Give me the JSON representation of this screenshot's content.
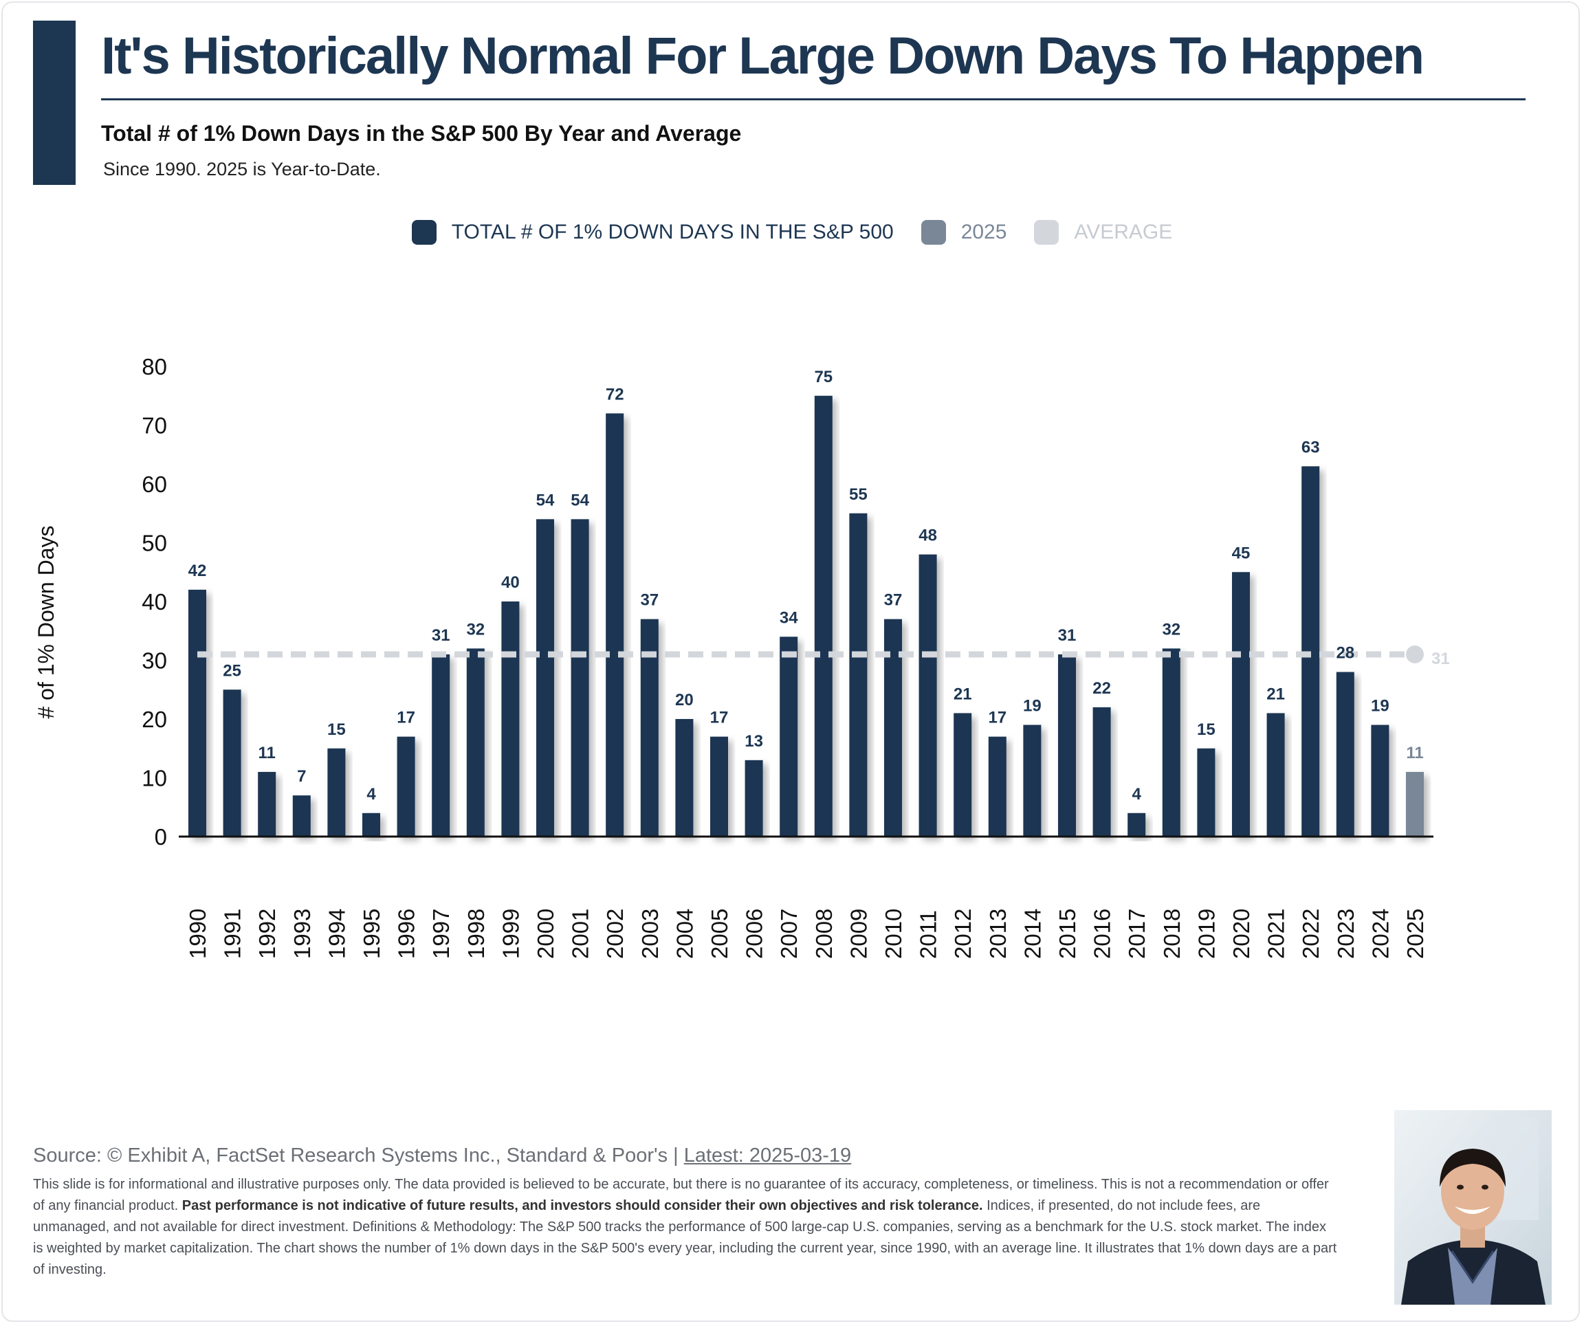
{
  "header": {
    "title": "It's Historically Normal For Large Down Days To Happen",
    "subtitle": "Total # of 1% Down Days in the S&P 500 By Year and Average",
    "note": "Since 1990. 2025 is Year-to-Date."
  },
  "legend": {
    "series1": "TOTAL # OF 1% DOWN DAYS IN THE S&P 500",
    "series2": "2025",
    "series3": "AVERAGE"
  },
  "colors": {
    "primary": "#1d3652",
    "current_year": "#7a8797",
    "average": "#d3d7dc"
  },
  "chart_data": {
    "type": "bar",
    "title": "Total # of 1% Down Days in the S&P 500 By Year and Average",
    "ylabel": "# of 1% Down Days",
    "xlabel": "",
    "ylim": [
      0,
      80
    ],
    "yticks": [
      0,
      10,
      20,
      30,
      40,
      50,
      60,
      70,
      80
    ],
    "categories": [
      "1990",
      "1991",
      "1992",
      "1993",
      "1994",
      "1995",
      "1996",
      "1997",
      "1998",
      "1999",
      "2000",
      "2001",
      "2002",
      "2003",
      "2004",
      "2005",
      "2006",
      "2007",
      "2008",
      "2009",
      "2010",
      "2011",
      "2012",
      "2013",
      "2014",
      "2015",
      "2016",
      "2017",
      "2018",
      "2019",
      "2020",
      "2021",
      "2022",
      "2023",
      "2024",
      "2025"
    ],
    "values": [
      42,
      25,
      11,
      7,
      15,
      4,
      17,
      31,
      32,
      40,
      54,
      54,
      72,
      37,
      20,
      17,
      13,
      34,
      75,
      55,
      37,
      48,
      21,
      17,
      19,
      31,
      22,
      4,
      32,
      15,
      45,
      21,
      63,
      28,
      19,
      11
    ],
    "highlight_category": "2025",
    "average": 31,
    "average_label": "31"
  },
  "footer": {
    "source_prefix": "Source: © Exhibit A, FactSet Research Systems Inc., Standard & Poor's | ",
    "latest": "Latest: 2025-03-19",
    "disclaimer_1": "This slide is for informational and illustrative purposes only. The data provided is believed to be accurate, but there is no guarantee of its accuracy, completeness, or timeliness. This is not a recommendation or offer of any financial product. ",
    "disclaimer_bold": "Past performance is not indicative of future results, and investors should consider their own objectives and risk tolerance.",
    "disclaimer_2": " Indices, if presented, do not include fees, are unmanaged, and not available for direct investment. Definitions & Methodology: The S&P 500 tracks the performance of 500 large-cap U.S. companies, serving as a benchmark for the U.S. stock market. The index is weighted by market capitalization. The chart shows the number of 1% down days in the S&P 500's every year, including the current year, since 1990, with an average line. It illustrates that 1% down days are a part of investing."
  }
}
